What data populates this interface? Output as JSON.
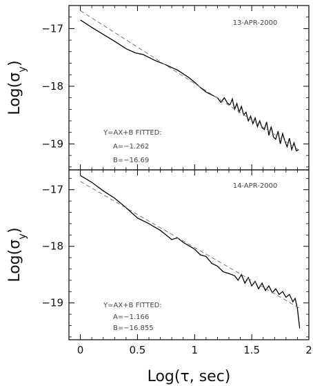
{
  "chart_data": [
    {
      "type": "line",
      "date_label": "13-APR-2000",
      "ylabel_main": "Log(σ",
      "ylabel_sub": "y",
      "ylabel_close": ")",
      "xlim": [
        -0.1,
        2.0
      ],
      "ylim": [
        -19.45,
        -16.6
      ],
      "yticks": [
        -17,
        -18,
        -19
      ],
      "ytick_labels": [
        "−17",
        "−18",
        "−19"
      ],
      "xticks": [
        0,
        0.5,
        1,
        1.5,
        2
      ],
      "fit_lines": [
        "Y=AX+B   FITTED:",
        "A=−1.262",
        "B=−16.69"
      ],
      "fit": {
        "A": -1.262,
        "B": -16.69
      },
      "series": [
        {
          "style": "solid",
          "x": [
            0,
            0.1,
            0.2,
            0.3,
            0.4,
            0.48,
            0.55,
            0.65,
            0.75,
            0.85,
            0.95,
            1.0,
            1.05,
            1.1,
            1.15,
            1.2,
            1.23,
            1.26,
            1.29,
            1.31,
            1.33,
            1.35,
            1.37,
            1.39,
            1.41,
            1.43,
            1.45,
            1.47,
            1.49,
            1.51,
            1.53,
            1.55,
            1.57,
            1.59,
            1.61,
            1.63,
            1.65,
            1.67,
            1.69,
            1.71,
            1.73,
            1.75,
            1.77,
            1.79,
            1.81,
            1.83,
            1.85,
            1.87,
            1.89,
            1.91
          ],
          "y": [
            -16.85,
            -16.98,
            -17.1,
            -17.22,
            -17.35,
            -17.42,
            -17.45,
            -17.55,
            -17.63,
            -17.72,
            -17.85,
            -17.93,
            -18.02,
            -18.1,
            -18.15,
            -18.2,
            -18.28,
            -18.2,
            -18.3,
            -18.32,
            -18.22,
            -18.4,
            -18.3,
            -18.45,
            -18.35,
            -18.5,
            -18.45,
            -18.6,
            -18.52,
            -18.65,
            -18.55,
            -18.7,
            -18.6,
            -18.72,
            -18.75,
            -18.62,
            -18.85,
            -18.7,
            -18.88,
            -18.92,
            -18.78,
            -19.0,
            -18.82,
            -18.95,
            -19.05,
            -18.9,
            -19.1,
            -18.98,
            -19.12,
            -19.1
          ]
        },
        {
          "style": "dashed",
          "x": [
            0,
            1.92
          ],
          "y": [
            -16.69,
            -19.113
          ]
        }
      ]
    },
    {
      "type": "line",
      "date_label": "14-APR-2000",
      "ylabel_main": "Log(σ",
      "ylabel_sub": "y",
      "ylabel_close": ")",
      "xlabel": "Log(τ, sec)",
      "xlim": [
        -0.1,
        2.0
      ],
      "ylim": [
        -19.65,
        -16.65
      ],
      "yticks": [
        -17,
        -18,
        -19
      ],
      "ytick_labels": [
        "−17",
        "−18",
        "−19"
      ],
      "xticks": [
        0,
        0.5,
        1,
        1.5,
        2
      ],
      "xtick_labels": [
        "0",
        "0.5",
        "1",
        "1.5",
        "2"
      ],
      "fit_lines": [
        "Y=AX+B   FITTED:",
        "A=−1.166",
        "B=−16.855"
      ],
      "fit": {
        "A": -1.166,
        "B": -16.855
      },
      "series": [
        {
          "style": "solid",
          "x": [
            0,
            0.1,
            0.2,
            0.3,
            0.4,
            0.5,
            0.6,
            0.7,
            0.75,
            0.8,
            0.85,
            0.9,
            1.0,
            1.05,
            1.1,
            1.15,
            1.2,
            1.25,
            1.3,
            1.35,
            1.38,
            1.41,
            1.44,
            1.47,
            1.5,
            1.53,
            1.56,
            1.59,
            1.62,
            1.65,
            1.68,
            1.71,
            1.74,
            1.77,
            1.8,
            1.83,
            1.86,
            1.88,
            1.9,
            1.92
          ],
          "y": [
            -16.75,
            -16.87,
            -17.02,
            -17.15,
            -17.32,
            -17.5,
            -17.6,
            -17.72,
            -17.8,
            -17.88,
            -17.85,
            -17.93,
            -18.05,
            -18.15,
            -18.18,
            -18.3,
            -18.35,
            -18.45,
            -18.48,
            -18.52,
            -18.6,
            -18.5,
            -18.65,
            -18.55,
            -18.7,
            -18.62,
            -18.75,
            -18.65,
            -18.78,
            -18.7,
            -18.82,
            -18.75,
            -18.85,
            -18.8,
            -18.9,
            -18.85,
            -18.98,
            -18.92,
            -19.1,
            -19.45
          ]
        },
        {
          "style": "dashed",
          "x": [
            0,
            1.92
          ],
          "y": [
            -16.855,
            -19.094
          ]
        }
      ]
    }
  ]
}
